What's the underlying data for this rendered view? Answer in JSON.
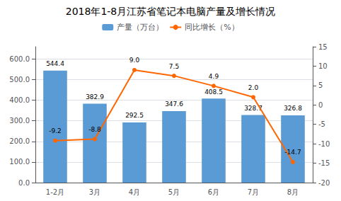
{
  "chart_data": {
    "type": "bar",
    "title": "2018年1-8月江苏省笔记本电脑产量及增长情况",
    "categories": [
      "1-2月",
      "3月",
      "4月",
      "5月",
      "6月",
      "7月",
      "8月"
    ],
    "series": [
      {
        "name": "产量（万台）",
        "type": "bar",
        "color": "#5b9bd5",
        "values": [
          544.4,
          382.9,
          292.5,
          347.6,
          408.5,
          328.7,
          326.8
        ]
      },
      {
        "name": "同比增长（%）",
        "type": "line",
        "axis": "y2",
        "color": "#ff6600",
        "marker": "circle",
        "values": [
          -9.2,
          -8.8,
          9.0,
          7.5,
          4.9,
          2.0,
          -14.7
        ],
        "value_labels": [
          "-9.2",
          "-8.8",
          "9.0",
          "7.5",
          "4.9",
          "2.0",
          "-14.7"
        ]
      }
    ],
    "ylim": [
      0,
      660
    ],
    "yticks": [
      {
        "value": 0,
        "label": "0.0"
      },
      {
        "value": 100,
        "label": "100.0"
      },
      {
        "value": 200,
        "label": "200.0"
      },
      {
        "value": 300,
        "label": "300.0"
      },
      {
        "value": 400,
        "label": "400.0"
      },
      {
        "value": 500,
        "label": "500.0"
      },
      {
        "value": 600,
        "label": "600.0"
      }
    ],
    "y2lim": [
      -20,
      15
    ],
    "y2ticks": [
      -20,
      -15,
      -10,
      -5,
      0,
      5,
      10,
      15
    ],
    "grid": true,
    "legend": "top",
    "data_labels": true
  }
}
